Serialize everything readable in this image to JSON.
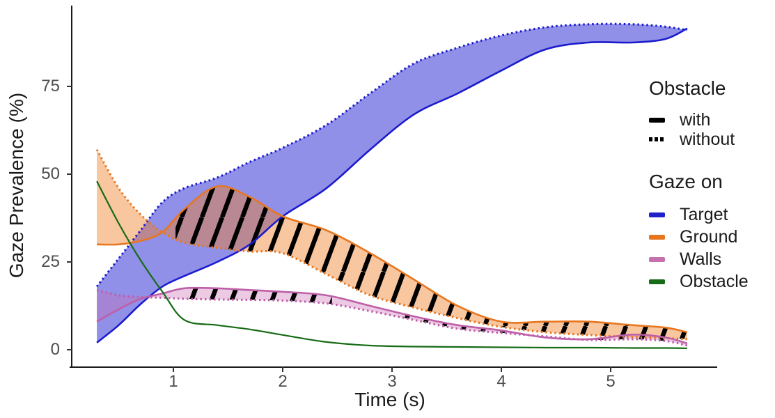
{
  "legend": {
    "linetype_title": "Obstacle",
    "linetype_items": [
      {
        "label": "with",
        "style": "solid"
      },
      {
        "label": "without",
        "style": "dotted"
      }
    ],
    "color_title": "Gaze on",
    "color_items": [
      {
        "label": "Target",
        "color": "#2121CC"
      },
      {
        "label": "Ground",
        "color": "#E8761F"
      },
      {
        "label": "Walls",
        "color": "#C671AE"
      },
      {
        "label": "Obstacle",
        "color": "#166B16"
      }
    ]
  },
  "chart_data": {
    "type": "area",
    "title": "",
    "xlabel": "Time (s)",
    "ylabel": "Gaze Prevalence (%)",
    "x_ticks": [
      1,
      2,
      3,
      4,
      5
    ],
    "y_ticks": [
      0,
      25,
      50,
      75
    ],
    "xlim": [
      0.1,
      5.95
    ],
    "ylim": [
      0,
      95
    ],
    "grid": false,
    "legend_position": "right",
    "line_styles": {
      "with": "solid",
      "without": "dotted"
    },
    "hatch_meaning": "black diagonal stripes where 'with' and 'without' ribbons differ",
    "x": [
      0.3,
      0.5,
      0.7,
      0.9,
      1.1,
      1.4,
      1.7,
      2.0,
      2.4,
      2.8,
      3.2,
      3.6,
      4.0,
      4.4,
      4.8,
      5.2,
      5.5,
      5.7
    ],
    "series": [
      {
        "name": "Target",
        "line_color": "#1B1BCE",
        "fill_color": "#3535D5",
        "fill_opacity": 0.55,
        "line_width": 2.6,
        "with": [
          2,
          7,
          13,
          18,
          21,
          25,
          30,
          38,
          46,
          57,
          67,
          73,
          79.5,
          85.5,
          87.5,
          87.5,
          88.5,
          91.5
        ],
        "without": [
          18,
          26,
          34,
          42,
          46,
          49,
          53.5,
          57.5,
          64,
          73,
          81.5,
          86,
          89.5,
          91.8,
          92.7,
          92.7,
          92,
          91
        ],
        "hatch_ranges": []
      },
      {
        "name": "Ground",
        "line_color": "#E8761F",
        "fill_color": "#EE7E24",
        "fill_opacity": 0.44,
        "line_width": 2.6,
        "with": [
          30,
          30,
          31,
          33.5,
          40,
          46.5,
          43.5,
          38,
          34,
          27.5,
          20,
          12.5,
          8,
          8,
          8,
          7,
          6.3,
          5
        ],
        "without": [
          57,
          46,
          38.5,
          33.5,
          30.5,
          29,
          28,
          27.5,
          21.5,
          15.5,
          12,
          9,
          6.5,
          5,
          4.2,
          3.6,
          3.3,
          3
        ],
        "hatch_ranges": [
          [
            1.02,
            5.7
          ]
        ]
      },
      {
        "name": "Walls",
        "line_color": "#BE5FA8",
        "fill_color": "#CA6CB4",
        "fill_opacity": 0.36,
        "line_width": 2.6,
        "with": [
          8,
          11.5,
          14.5,
          16,
          17.5,
          17.5,
          17,
          16.5,
          15.5,
          12.5,
          9.5,
          7,
          5.5,
          3.5,
          3,
          4.3,
          3.5,
          1.8
        ],
        "without": [
          17,
          15.5,
          15,
          14.8,
          14.5,
          14.3,
          14.2,
          14,
          13.2,
          11,
          8.5,
          6,
          4.8,
          3.8,
          2.8,
          3,
          2.5,
          1.2
        ],
        "hatch_ranges": [
          [
            1.08,
            2.45
          ],
          [
            3.0,
            5.55
          ]
        ]
      },
      {
        "name": "Obstacle",
        "line_color": "#166B16",
        "fill_color": null,
        "fill_opacity": 0,
        "line_width": 2.2,
        "with": [
          48,
          36,
          25.5,
          16.5,
          8.5,
          7,
          5.8,
          4.2,
          2.2,
          1.2,
          0.9,
          0.8,
          0.7,
          0.6,
          0.6,
          0.5,
          0.5,
          0.4
        ],
        "without": null,
        "hatch_ranges": []
      }
    ]
  }
}
